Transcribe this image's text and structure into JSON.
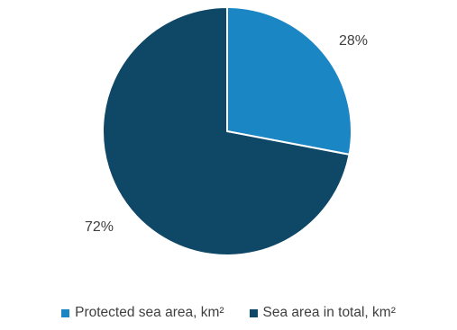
{
  "chart_data": {
    "type": "pie",
    "title": "",
    "start_angle_deg": 0,
    "direction": "clockwise",
    "legend_position": "bottom",
    "slices": [
      {
        "label": "Protected sea area, km²",
        "value": 28,
        "value_label": "28%",
        "color": "#1b86c4"
      },
      {
        "label": "Sea area in total, km²",
        "value": 72,
        "value_label": "72%",
        "color": "#0f4766"
      }
    ]
  }
}
